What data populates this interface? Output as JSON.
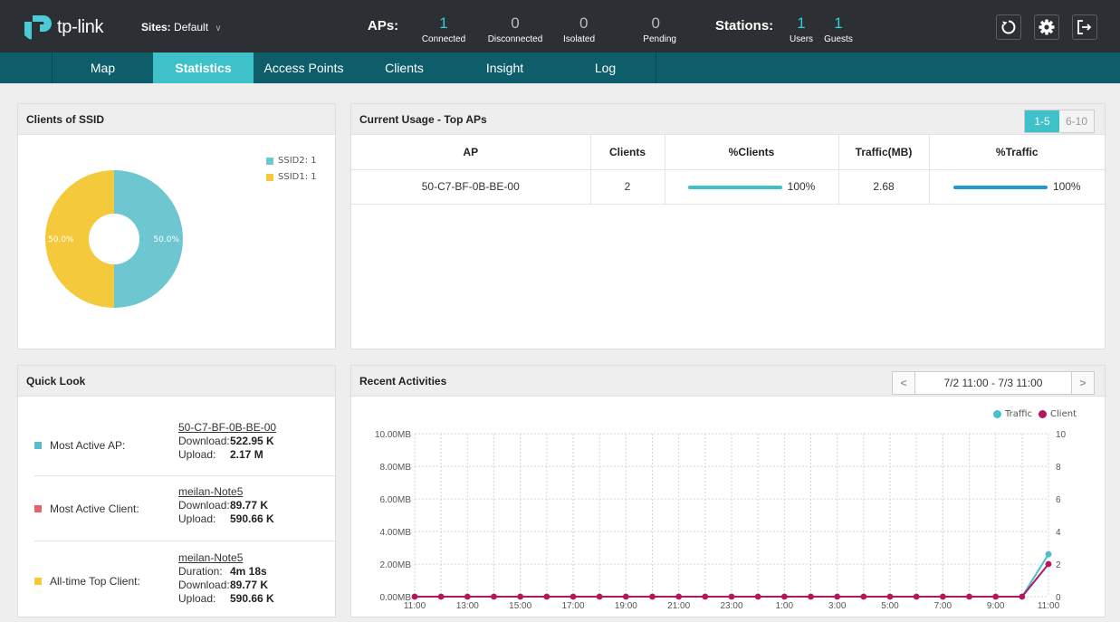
{
  "header": {
    "logo_text": "tp-link",
    "sites_label": "Sites:",
    "sites_value": "Default",
    "aps_label": "APs:",
    "aps": [
      {
        "value": "1",
        "caption": "Connected",
        "color": "#2ed0d6"
      },
      {
        "value": "0",
        "caption": "Disconnected",
        "color": "#2ed0d6"
      },
      {
        "value": "0",
        "caption": "Isolated",
        "color": "#2ed0d6"
      },
      {
        "value": "0",
        "caption": "Pending",
        "color": "#2ed0d6"
      }
    ],
    "stations_label": "Stations:",
    "stations": [
      {
        "value": "1",
        "caption": "Users"
      },
      {
        "value": "1",
        "caption": "Guests"
      }
    ],
    "icons": [
      "refresh-icon",
      "gear-icon",
      "logout-icon"
    ]
  },
  "nav": {
    "items": [
      "Map",
      "Statistics",
      "Access Points",
      "Clients",
      "Insight",
      "Log"
    ],
    "active": "Statistics"
  },
  "clients_ssid": {
    "title": "Clients of SSID",
    "legend": [
      {
        "label": "SSID2: 1",
        "color": "#6ec6d0"
      },
      {
        "label": "SSID1: 1",
        "color": "#f5c93c"
      }
    ],
    "slices": [
      {
        "name": "SSID2",
        "value": 1,
        "pct_label": "50.0%",
        "color": "#6ec6d0"
      },
      {
        "name": "SSID1",
        "value": 1,
        "pct_label": "50.0%",
        "color": "#f5c93c"
      }
    ]
  },
  "top_aps": {
    "title": "Current Usage - Top APs",
    "pager": [
      "1-5",
      "6-10"
    ],
    "columns": [
      "AP",
      "Clients",
      "%Clients",
      "Traffic(MB)",
      "%Traffic"
    ],
    "rows": [
      {
        "ap": "50-C7-BF-0B-BE-00",
        "clients": "2",
        "pct_clients": "100%",
        "pct_clients_value": 1.0,
        "traffic": "2.68",
        "pct_traffic": "100%",
        "pct_traffic_value": 1.0
      }
    ],
    "bar_colors": {
      "clients": "#3fc1c9",
      "traffic": "#1f9ad6"
    }
  },
  "quick_look": {
    "title": "Quick Look",
    "items": [
      {
        "label": "Most Active AP:",
        "color": "#5bbccb",
        "name": "50-C7-BF-0B-BE-00",
        "lines": [
          {
            "k": "Download:",
            "v": "522.95 K"
          },
          {
            "k": "Upload:",
            "v": "2.17 M"
          }
        ]
      },
      {
        "label": "Most Active Client:",
        "color": "#e2676b",
        "name": "meilan-Note5",
        "lines": [
          {
            "k": "Download:",
            "v": "89.77 K"
          },
          {
            "k": "Upload:",
            "v": "590.66 K"
          }
        ]
      },
      {
        "label": "All-time Top Client:",
        "color": "#f5c93c",
        "name": "meilan-Note5",
        "lines": [
          {
            "k": "Duration:",
            "v": "4m 18s"
          },
          {
            "k": "Download:",
            "v": "89.77 K"
          },
          {
            "k": "Upload:",
            "v": "590.66 K"
          }
        ]
      }
    ]
  },
  "recent": {
    "title": "Recent Activities",
    "range": "7/2 11:00 - 7/3 11:00",
    "prev_glyph": "<",
    "next_glyph": ">"
  },
  "chart_data": {
    "type": "line",
    "title": "Recent Activities",
    "x_tick_labels": [
      "11:00",
      "13:00",
      "15:00",
      "17:00",
      "19:00",
      "21:00",
      "23:00",
      "1:00",
      "3:00",
      "5:00",
      "7:00",
      "9:00",
      "11:00"
    ],
    "x": [
      "11:00",
      "12:00",
      "13:00",
      "14:00",
      "15:00",
      "16:00",
      "17:00",
      "18:00",
      "19:00",
      "20:00",
      "21:00",
      "22:00",
      "23:00",
      "0:00",
      "1:00",
      "2:00",
      "3:00",
      "4:00",
      "5:00",
      "6:00",
      "7:00",
      "8:00",
      "9:00",
      "10:00",
      "11:00"
    ],
    "y_left_ticks": [
      "0.00MB",
      "2.00MB",
      "4.00MB",
      "6.00MB",
      "8.00MB",
      "10.00MB"
    ],
    "y_right_ticks": [
      "0",
      "2",
      "4",
      "6",
      "8",
      "10"
    ],
    "ylim_left": [
      0,
      10
    ],
    "ylim_right": [
      0,
      10
    ],
    "grid": true,
    "legend_position": "top-right",
    "series": [
      {
        "name": "Traffic",
        "axis": "left",
        "color": "#4bbfcf",
        "dots": "last",
        "values": [
          0,
          0,
          0,
          0,
          0,
          0,
          0,
          0,
          0,
          0,
          0,
          0,
          0,
          0,
          0,
          0,
          0,
          0,
          0,
          0,
          0,
          0,
          0,
          0,
          2.6
        ]
      },
      {
        "name": "Client",
        "axis": "right",
        "color": "#b5175f",
        "dots": "all",
        "values": [
          0,
          0,
          0,
          0,
          0,
          0,
          0,
          0,
          0,
          0,
          0,
          0,
          0,
          0,
          0,
          0,
          0,
          0,
          0,
          0,
          0,
          0,
          0,
          0,
          2
        ]
      }
    ]
  }
}
